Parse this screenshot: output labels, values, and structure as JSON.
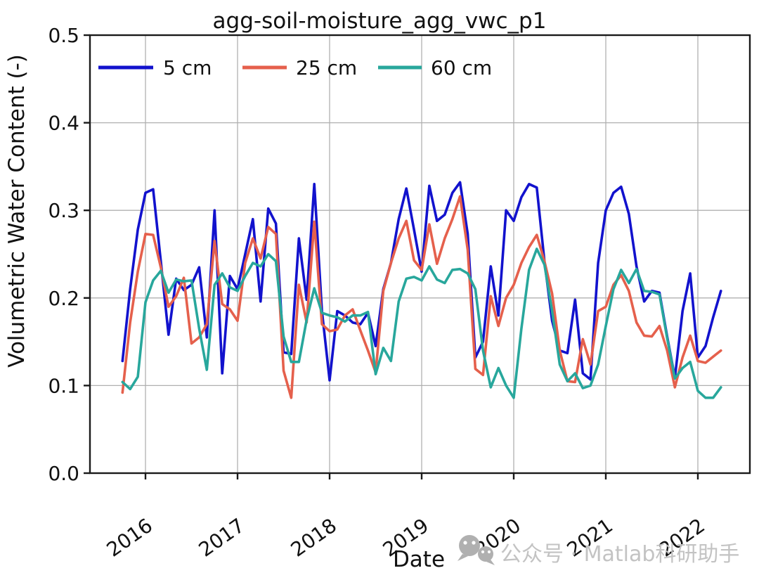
{
  "title": "agg-soil-moisture_agg_vwc_p1",
  "watermark": {
    "icon": "wechat-icon",
    "text": "公众号 · Matlab科研助手",
    "color": "#b0b0b0"
  },
  "chart_data": {
    "type": "line",
    "title": "agg-soil-moisture_agg_vwc_p1",
    "xlabel": "Date",
    "ylabel": "Volumetric Water Content (-)",
    "ylim": [
      0.0,
      0.5
    ],
    "yticks": [
      0.0,
      0.1,
      0.2,
      0.3,
      0.4,
      0.5
    ],
    "xticks": [
      2016,
      2017,
      2018,
      2019,
      2020,
      2021,
      2022
    ],
    "grid": true,
    "legend_position": "top-inside-horizontal",
    "x_start": "2015-10",
    "x_end": "2022-04",
    "x_step": "monthly",
    "series": [
      {
        "name": "5 cm",
        "color": "#1212cd",
        "values": [
          0.128,
          0.21,
          0.278,
          0.32,
          0.324,
          0.242,
          0.158,
          0.222,
          0.209,
          0.215,
          0.235,
          0.155,
          0.3,
          0.114,
          0.225,
          0.21,
          0.25,
          0.29,
          0.196,
          0.302,
          0.285,
          0.138,
          0.136,
          0.268,
          0.198,
          0.33,
          0.185,
          0.106,
          0.185,
          0.18,
          0.172,
          0.17,
          0.183,
          0.145,
          0.21,
          0.24,
          0.29,
          0.325,
          0.278,
          0.23,
          0.328,
          0.288,
          0.295,
          0.32,
          0.332,
          0.273,
          0.132,
          0.15,
          0.236,
          0.18,
          0.3,
          0.288,
          0.315,
          0.33,
          0.326,
          0.242,
          0.174,
          0.14,
          0.137,
          0.198,
          0.114,
          0.107,
          0.24,
          0.3,
          0.32,
          0.327,
          0.296,
          0.236,
          0.196,
          0.208,
          0.206,
          0.156,
          0.109,
          0.185,
          0.228,
          0.132,
          0.145,
          0.178,
          0.208
        ]
      },
      {
        "name": "25 cm",
        "color": "#e5604c",
        "values": [
          0.092,
          0.172,
          0.23,
          0.273,
          0.272,
          0.235,
          0.19,
          0.202,
          0.223,
          0.148,
          0.155,
          0.17,
          0.265,
          0.193,
          0.187,
          0.174,
          0.24,
          0.268,
          0.245,
          0.281,
          0.273,
          0.117,
          0.086,
          0.215,
          0.172,
          0.287,
          0.17,
          0.162,
          0.164,
          0.18,
          0.187,
          0.163,
          0.14,
          0.115,
          0.208,
          0.24,
          0.268,
          0.288,
          0.243,
          0.232,
          0.284,
          0.239,
          0.268,
          0.29,
          0.316,
          0.255,
          0.119,
          0.112,
          0.202,
          0.168,
          0.2,
          0.215,
          0.24,
          0.258,
          0.272,
          0.242,
          0.205,
          0.14,
          0.105,
          0.104,
          0.153,
          0.124,
          0.185,
          0.19,
          0.215,
          0.226,
          0.208,
          0.172,
          0.157,
          0.156,
          0.168,
          0.14,
          0.098,
          0.132,
          0.157,
          0.128,
          0.126,
          0.133,
          0.14
        ]
      },
      {
        "name": "60 cm",
        "color": "#28a79c",
        "values": [
          0.104,
          0.096,
          0.11,
          0.195,
          0.22,
          0.231,
          0.206,
          0.221,
          0.219,
          0.22,
          0.165,
          0.118,
          0.215,
          0.228,
          0.212,
          0.208,
          0.225,
          0.24,
          0.236,
          0.25,
          0.242,
          0.156,
          0.127,
          0.127,
          0.175,
          0.211,
          0.183,
          0.18,
          0.178,
          0.173,
          0.18,
          0.18,
          0.184,
          0.113,
          0.143,
          0.128,
          0.196,
          0.222,
          0.224,
          0.22,
          0.236,
          0.221,
          0.217,
          0.232,
          0.233,
          0.228,
          0.21,
          0.14,
          0.098,
          0.12,
          0.1,
          0.086,
          0.165,
          0.232,
          0.256,
          0.238,
          0.185,
          0.124,
          0.105,
          0.114,
          0.097,
          0.1,
          0.124,
          0.168,
          0.21,
          0.232,
          0.217,
          0.233,
          0.208,
          0.207,
          0.204,
          0.154,
          0.108,
          0.12,
          0.127,
          0.094,
          0.086,
          0.086,
          0.098
        ]
      }
    ]
  }
}
